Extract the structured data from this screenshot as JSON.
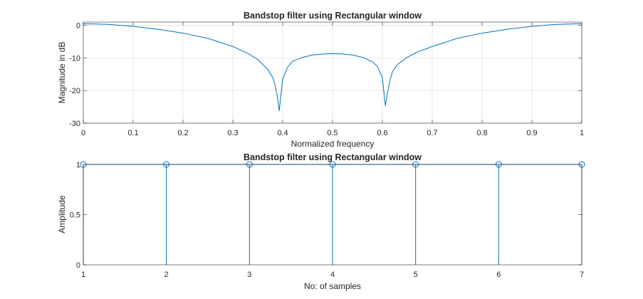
{
  "chart_data": [
    {
      "type": "line",
      "title": "Bandstop filter using Rectangular window",
      "xlabel": "Normalized frequency",
      "ylabel": "Magnitude in dB",
      "xlim": [
        0,
        1
      ],
      "ylim": [
        -30,
        1
      ],
      "x_ticks": [
        0,
        0.1,
        0.2,
        0.3,
        0.4,
        0.5,
        0.6,
        0.7,
        0.8,
        0.9,
        1
      ],
      "x_tick_labels": [
        "0",
        "0.1",
        "0.2",
        "0.3",
        "0.4",
        "0.5",
        "0.6",
        "0.7",
        "0.8",
        "0.9",
        "1"
      ],
      "y_ticks": [
        -30,
        -20,
        -10,
        0
      ],
      "y_tick_labels": [
        "-30",
        "-20",
        "-10",
        "0"
      ],
      "grid": true,
      "color": "#0072BD",
      "series": [
        {
          "x": [
            0,
            0.05,
            0.1,
            0.15,
            0.2,
            0.25,
            0.3,
            0.33,
            0.35,
            0.37,
            0.38,
            0.385,
            0.39,
            0.393,
            0.396,
            0.4,
            0.41,
            0.42,
            0.44,
            0.46,
            0.48,
            0.5,
            0.52,
            0.54,
            0.56,
            0.58,
            0.59,
            0.6,
            0.603,
            0.606,
            0.61,
            0.615,
            0.62,
            0.63,
            0.65,
            0.67,
            0.7,
            0.75,
            0.8,
            0.85,
            0.9,
            0.95,
            1
          ],
          "y": [
            0.5,
            0.3,
            -0.3,
            -1.2,
            -2.4,
            -4.0,
            -6.5,
            -8.6,
            -10.5,
            -13.5,
            -16.0,
            -18.5,
            -22.5,
            -26.3,
            -22.0,
            -16.5,
            -12.8,
            -11.0,
            -9.8,
            -9.1,
            -8.8,
            -8.7,
            -8.8,
            -9.1,
            -9.8,
            -11.2,
            -12.6,
            -16.0,
            -20.5,
            -24.7,
            -21.0,
            -17.0,
            -14.3,
            -12.0,
            -9.8,
            -8.2,
            -6.5,
            -4.0,
            -2.4,
            -1.2,
            -0.3,
            0.3,
            0.5
          ]
        }
      ]
    },
    {
      "type": "stem",
      "title": "Bandstop filter using Rectangular window",
      "xlabel": "No: of samples",
      "ylabel": "Amplitude",
      "xlim": [
        1,
        7
      ],
      "ylim": [
        0,
        1
      ],
      "x_ticks": [
        1,
        2,
        3,
        4,
        5,
        6,
        7
      ],
      "x_tick_labels": [
        "1",
        "2",
        "3",
        "4",
        "5",
        "6",
        "7"
      ],
      "y_ticks": [
        0,
        0.5,
        1
      ],
      "y_tick_labels": [
        "0",
        "0.5",
        "1"
      ],
      "grid": false,
      "color": "#0072BD",
      "series": [
        {
          "x": [
            1,
            2,
            3,
            4,
            5,
            6,
            7
          ],
          "y": [
            1,
            1,
            1,
            1,
            1,
            1,
            1
          ]
        }
      ]
    }
  ]
}
